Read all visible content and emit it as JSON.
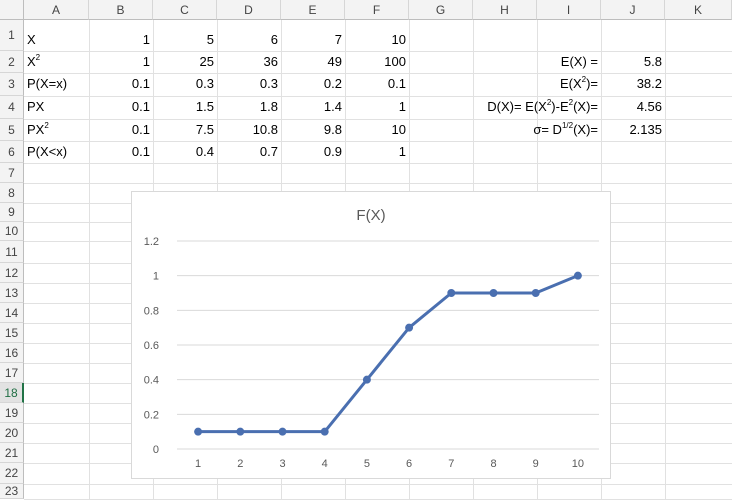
{
  "columns": [
    "A",
    "B",
    "C",
    "D",
    "E",
    "F",
    "G",
    "H",
    "I",
    "J",
    "K"
  ],
  "rows": [
    "1",
    "2",
    "3",
    "4",
    "5",
    "6",
    "7",
    "8",
    "9",
    "10",
    "11",
    "12",
    "13",
    "14",
    "15",
    "16",
    "17",
    "18",
    "19",
    "20",
    "21",
    "22",
    "23"
  ],
  "selected_row": "18",
  "table": {
    "r1": {
      "label": "X",
      "values": [
        "1",
        "5",
        "6",
        "7",
        "10"
      ]
    },
    "r2": {
      "label_base": "X",
      "label_sup": "2",
      "values": [
        "1",
        "25",
        "36",
        "49",
        "100"
      ]
    },
    "r3": {
      "label": "P(X=x)",
      "values": [
        "0.1",
        "0.3",
        "0.3",
        "0.2",
        "0.1"
      ]
    },
    "r4": {
      "label": "PX",
      "values": [
        "0.1",
        "1.5",
        "1.8",
        "1.4",
        "1"
      ]
    },
    "r5": {
      "label_base": "PX",
      "label_sup": "2",
      "values": [
        "0.1",
        "7.5",
        "10.8",
        "9.8",
        "10"
      ]
    },
    "r6": {
      "label": "P(X<x)",
      "values": [
        "0.1",
        "0.4",
        "0.7",
        "0.9",
        "1"
      ]
    }
  },
  "stats": {
    "ex": {
      "label": "E(X) =",
      "value": "5.8"
    },
    "ex2": {
      "label_a": "E(X",
      "label_sup": "2",
      "label_b": ")=",
      "value": "38.2"
    },
    "dx": {
      "a": "D(X)= E(X",
      "sup1": "2",
      "b": ")-E",
      "sup2": "2",
      "c": "(X)=",
      "value": "4.56"
    },
    "sigma": {
      "a": "σ= D",
      "sup": "1/2",
      "b": "(X)=",
      "value": "2.135"
    }
  },
  "chart_data": {
    "type": "line",
    "title": "F(X)",
    "categories": [
      "1",
      "2",
      "3",
      "4",
      "5",
      "6",
      "7",
      "8",
      "9",
      "10"
    ],
    "values": [
      0.1,
      0.1,
      0.1,
      0.1,
      0.4,
      0.7,
      0.9,
      0.9,
      0.9,
      1.0
    ],
    "ylim": [
      0,
      1.2
    ],
    "yticks": [
      "0",
      "0.2",
      "0.4",
      "0.6",
      "0.8",
      "1",
      "1.2"
    ],
    "grid": true,
    "legend": "none",
    "line_color": "#4a6fb0"
  }
}
